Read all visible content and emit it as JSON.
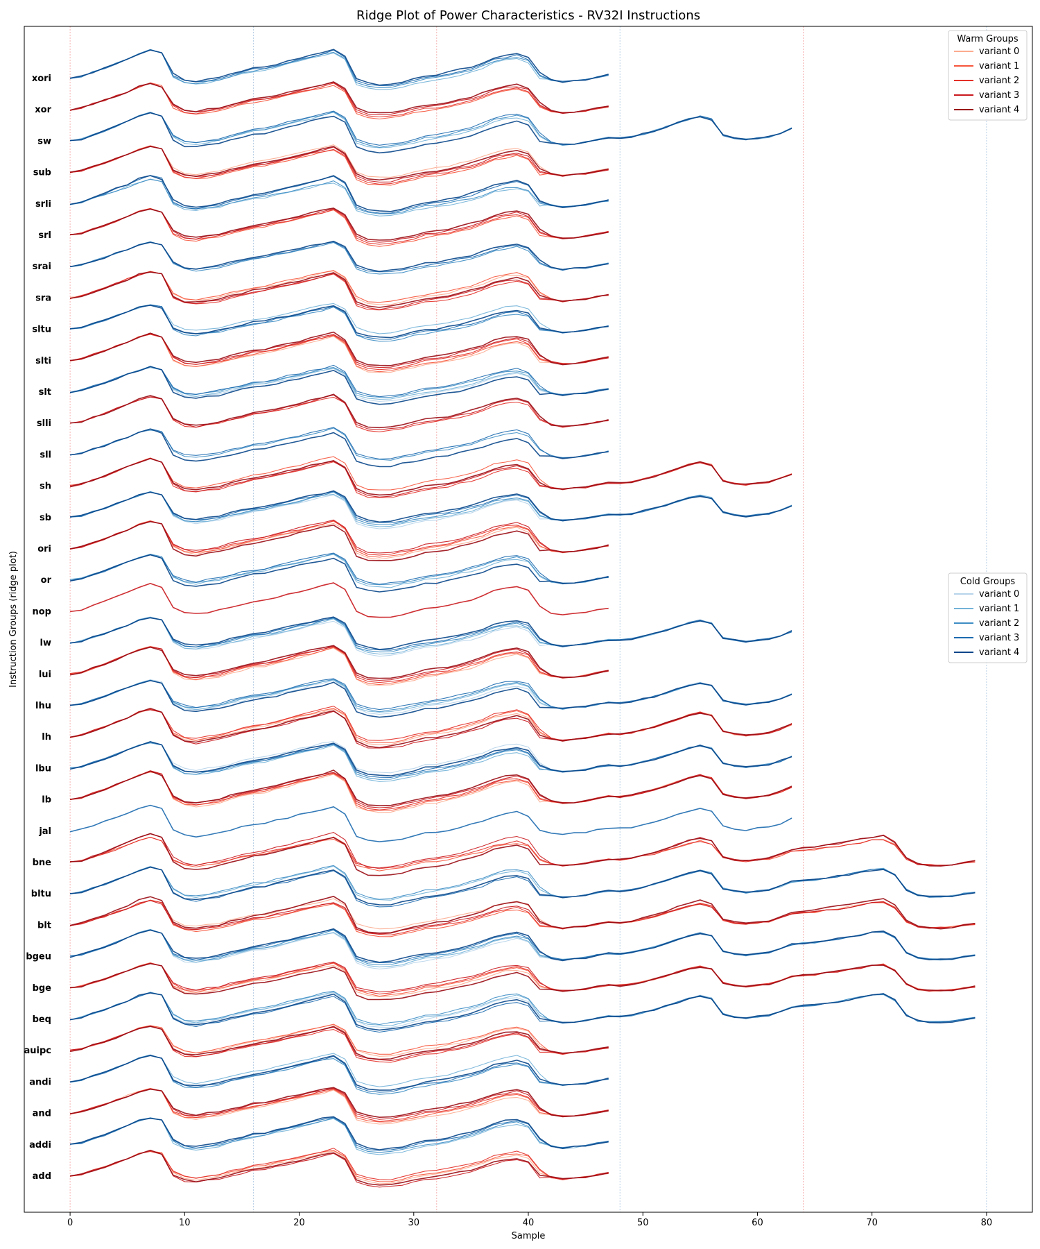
{
  "chart_data": {
    "type": "line",
    "subtype": "ridge",
    "title": "Ridge Plot of Power Characteristics - RV32I Instructions",
    "xlabel": "Sample",
    "ylabel": "Instruction Groups (ridge plot)",
    "xlim": [
      -4,
      84
    ],
    "x_ticks": [
      0,
      10,
      20,
      30,
      40,
      50,
      60,
      70,
      80
    ],
    "x_ticks_text": [
      "0",
      "10",
      "20",
      "30",
      "40",
      "50",
      "60",
      "70",
      "80"
    ],
    "vertical_reference_lines": [
      0,
      16,
      32,
      48,
      64,
      80
    ],
    "grid": false,
    "categories": [
      "xori",
      "xor",
      "sw",
      "sub",
      "srli",
      "srl",
      "srai",
      "sra",
      "sltu",
      "slti",
      "slt",
      "slli",
      "sll",
      "sh",
      "sb",
      "ori",
      "or",
      "nop",
      "lw",
      "lui",
      "lhu",
      "lh",
      "lbu",
      "lb",
      "jal",
      "bne",
      "bltu",
      "blt",
      "bgeu",
      "bge",
      "beq",
      "auipc",
      "andi",
      "and",
      "addi",
      "add"
    ],
    "category_group": [
      "cold",
      "warm",
      "cold",
      "warm",
      "cold",
      "warm",
      "cold",
      "warm",
      "cold",
      "warm",
      "cold",
      "warm",
      "cold",
      "warm",
      "cold",
      "warm",
      "cold",
      "warm",
      "cold",
      "warm",
      "cold",
      "warm",
      "cold",
      "warm",
      "cold",
      "warm",
      "cold",
      "warm",
      "cold",
      "warm",
      "cold",
      "warm",
      "cold",
      "warm",
      "cold",
      "warm"
    ],
    "category_variant_count": [
      4,
      4,
      4,
      5,
      4,
      4,
      3,
      5,
      4,
      5,
      5,
      3,
      3,
      4,
      5,
      5,
      4,
      1,
      5,
      5,
      5,
      5,
      5,
      5,
      1,
      4,
      4,
      5,
      5,
      5,
      5,
      5,
      4,
      5,
      4,
      5
    ],
    "category_trace_length": [
      48,
      48,
      64,
      48,
      48,
      48,
      48,
      48,
      48,
      48,
      48,
      48,
      48,
      64,
      64,
      48,
      48,
      48,
      64,
      48,
      64,
      64,
      64,
      64,
      64,
      80,
      80,
      80,
      80,
      80,
      80,
      48,
      48,
      48,
      48,
      48
    ],
    "base_waveform": {
      "x": [
        0,
        1,
        2,
        3,
        4,
        5,
        6,
        7,
        8,
        9,
        10,
        11,
        12,
        13,
        14,
        15,
        16,
        17,
        18,
        19,
        20,
        21,
        22,
        23,
        24,
        25,
        26,
        27,
        28,
        29,
        30,
        31,
        32,
        33,
        34,
        35,
        36,
        37,
        38,
        39,
        40,
        41,
        42,
        43,
        44,
        45,
        46,
        47
      ],
      "y": [
        0,
        0.07,
        0.22,
        0.35,
        0.52,
        0.68,
        0.86,
        0.98,
        0.87,
        0.1,
        -0.1,
        -0.15,
        -0.08,
        -0.02,
        0.1,
        0.2,
        0.3,
        0.35,
        0.45,
        0.55,
        0.65,
        0.75,
        0.85,
        0.95,
        0.7,
        -0.1,
        -0.25,
        -0.3,
        -0.28,
        -0.2,
        -0.1,
        0,
        0.05,
        0.12,
        0.22,
        0.32,
        0.45,
        0.62,
        0.72,
        0.78,
        0.65,
        0.1,
        -0.05,
        -0.12,
        -0.08,
        -0.04,
        0.05,
        0.12
      ]
    },
    "extension_waveform": {
      "x": [
        48,
        49,
        50,
        51,
        52,
        53,
        54,
        55,
        56,
        57,
        58,
        59,
        60,
        61,
        62,
        63,
        64,
        65,
        66,
        67,
        68,
        69,
        70,
        71,
        72,
        73,
        74,
        75,
        76,
        77,
        78,
        79
      ],
      "y": [
        0.1,
        0.15,
        0.25,
        0.35,
        0.48,
        0.62,
        0.76,
        0.85,
        0.75,
        0.2,
        0.1,
        0.05,
        0.1,
        0.15,
        0.28,
        0.45,
        0.5,
        0.52,
        0.6,
        0.65,
        0.72,
        0.8,
        0.88,
        0.92,
        0.7,
        0.15,
        -0.05,
        -0.1,
        -0.1,
        -0.08,
        0,
        0.05
      ]
    },
    "legends": [
      {
        "title": "Warm Groups",
        "position": "top-right",
        "entries": [
          "variant 0",
          "variant 1",
          "variant 2",
          "variant 3",
          "variant 4"
        ],
        "colors": [
          "#fcab8f",
          "#f6553c",
          "#e32f27",
          "#c9181d",
          "#9a0c14"
        ]
      },
      {
        "title": "Cold Groups",
        "position": "center-right",
        "entries": [
          "variant 0",
          "variant 1",
          "variant 2",
          "variant 3",
          "variant 4"
        ],
        "colors": [
          "#b7d4ea",
          "#73b2d8",
          "#3d8dc4",
          "#1c6aaf",
          "#08468a"
        ]
      }
    ],
    "x_tick_labels": [
      "0",
      "10",
      "20",
      "30",
      "40",
      "50",
      "60",
      "70",
      "80"
    ]
  }
}
